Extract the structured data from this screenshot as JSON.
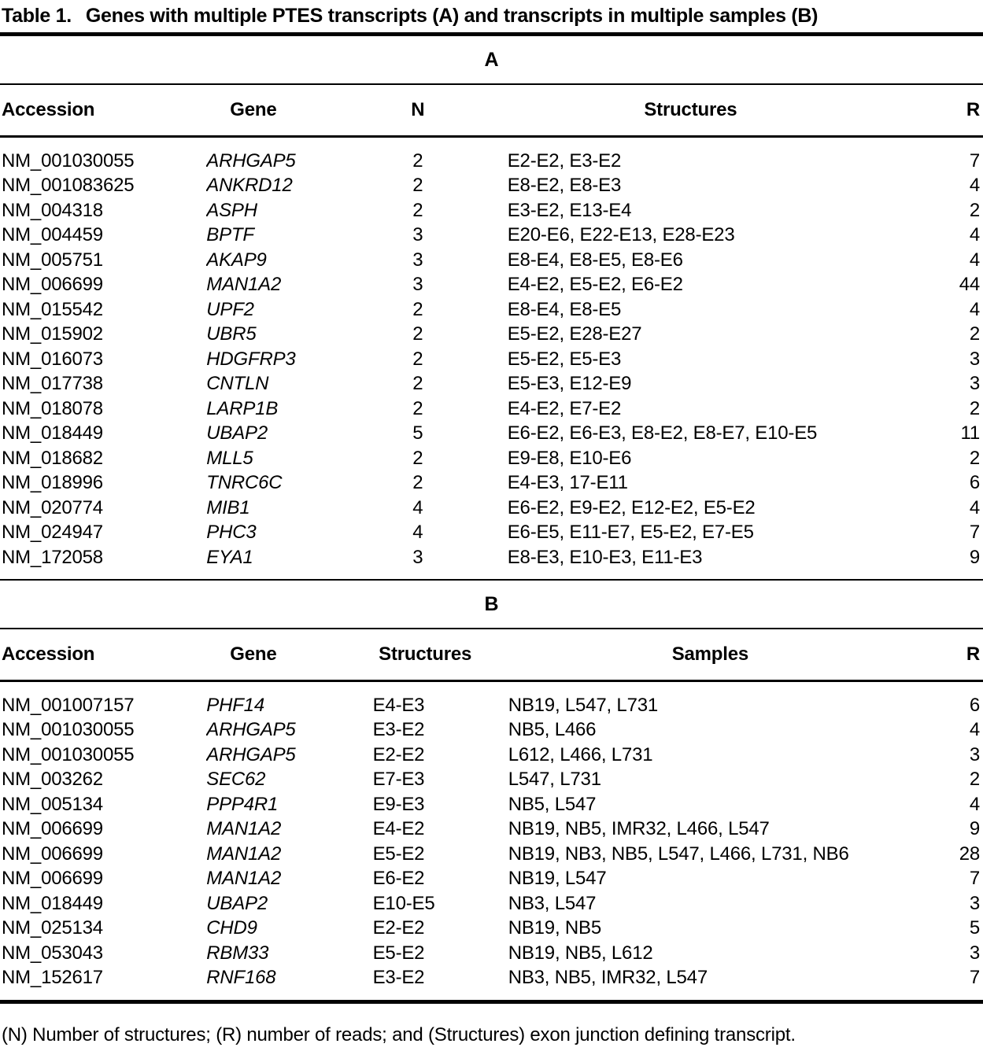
{
  "title": {
    "label": "Table 1.",
    "text": "Genes with multiple PTES transcripts (A) and transcripts in multiple samples (B)"
  },
  "section_a": {
    "heading": "A",
    "columns": {
      "accession": "Accession",
      "gene": "Gene",
      "n": "N",
      "structures": "Structures",
      "r": "R"
    },
    "rows": [
      {
        "accession": "NM_001030055",
        "gene": "ARHGAP5",
        "n": "2",
        "structures": "E2-E2, E3-E2",
        "r": "7"
      },
      {
        "accession": "NM_001083625",
        "gene": "ANKRD12",
        "n": "2",
        "structures": "E8-E2, E8-E3",
        "r": "4"
      },
      {
        "accession": "NM_004318",
        "gene": "ASPH",
        "n": "2",
        "structures": "E3-E2, E13-E4",
        "r": "2"
      },
      {
        "accession": "NM_004459",
        "gene": "BPTF",
        "n": "3",
        "structures": "E20-E6, E22-E13, E28-E23",
        "r": "4"
      },
      {
        "accession": "NM_005751",
        "gene": "AKAP9",
        "n": "3",
        "structures": "E8-E4, E8-E5, E8-E6",
        "r": "4"
      },
      {
        "accession": "NM_006699",
        "gene": "MAN1A2",
        "n": "3",
        "structures": "E4-E2, E5-E2, E6-E2",
        "r": "44"
      },
      {
        "accession": "NM_015542",
        "gene": "UPF2",
        "n": "2",
        "structures": "E8-E4, E8-E5",
        "r": "4"
      },
      {
        "accession": "NM_015902",
        "gene": "UBR5",
        "n": "2",
        "structures": "E5-E2, E28-E27",
        "r": "2"
      },
      {
        "accession": "NM_016073",
        "gene": "HDGFRP3",
        "n": "2",
        "structures": "E5-E2, E5-E3",
        "r": "3"
      },
      {
        "accession": "NM_017738",
        "gene": "CNTLN",
        "n": "2",
        "structures": "E5-E3, E12-E9",
        "r": "3"
      },
      {
        "accession": "NM_018078",
        "gene": "LARP1B",
        "n": "2",
        "structures": "E4-E2, E7-E2",
        "r": "2"
      },
      {
        "accession": "NM_018449",
        "gene": "UBAP2",
        "n": "5",
        "structures": "E6-E2, E6-E3, E8-E2, E8-E7, E10-E5",
        "r": "11"
      },
      {
        "accession": "NM_018682",
        "gene": "MLL5",
        "n": "2",
        "structures": "E9-E8, E10-E6",
        "r": "2"
      },
      {
        "accession": "NM_018996",
        "gene": "TNRC6C",
        "n": "2",
        "structures": "E4-E3, 17-E11",
        "r": "6"
      },
      {
        "accession": "NM_020774",
        "gene": "MIB1",
        "n": "4",
        "structures": "E6-E2, E9-E2, E12-E2, E5-E2",
        "r": "4"
      },
      {
        "accession": "NM_024947",
        "gene": "PHC3",
        "n": "4",
        "structures": "E6-E5, E11-E7, E5-E2, E7-E5",
        "r": "7"
      },
      {
        "accession": "NM_172058",
        "gene": "EYA1",
        "n": "3",
        "structures": "E8-E3, E10-E3, E11-E3",
        "r": "9"
      }
    ]
  },
  "section_b": {
    "heading": "B",
    "columns": {
      "accession": "Accession",
      "gene": "Gene",
      "structures": "Structures",
      "samples": "Samples",
      "r": "R"
    },
    "rows": [
      {
        "accession": "NM_001007157",
        "gene": "PHF14",
        "structures": "E4-E3",
        "samples": "NB19, L547, L731",
        "r": "6"
      },
      {
        "accession": "NM_001030055",
        "gene": "ARHGAP5",
        "structures": "E3-E2",
        "samples": "NB5, L466",
        "r": "4"
      },
      {
        "accession": "NM_001030055",
        "gene": "ARHGAP5",
        "structures": "E2-E2",
        "samples": "L612, L466, L731",
        "r": "3"
      },
      {
        "accession": "NM_003262",
        "gene": "SEC62",
        "structures": "E7-E3",
        "samples": "L547, L731",
        "r": "2"
      },
      {
        "accession": "NM_005134",
        "gene": "PPP4R1",
        "structures": "E9-E3",
        "samples": "NB5, L547",
        "r": "4"
      },
      {
        "accession": "NM_006699",
        "gene": "MAN1A2",
        "structures": "E4-E2",
        "samples": "NB19, NB5, IMR32, L466, L547",
        "r": "9"
      },
      {
        "accession": "NM_006699",
        "gene": "MAN1A2",
        "structures": "E5-E2",
        "samples": "NB19, NB3, NB5, L547, L466, L731, NB6",
        "r": "28"
      },
      {
        "accession": "NM_006699",
        "gene": "MAN1A2",
        "structures": "E6-E2",
        "samples": "NB19, L547",
        "r": "7"
      },
      {
        "accession": "NM_018449",
        "gene": "UBAP2",
        "structures": "E10-E5",
        "samples": "NB3, L547",
        "r": "3"
      },
      {
        "accession": "NM_025134",
        "gene": "CHD9",
        "structures": "E2-E2",
        "samples": "NB19, NB5",
        "r": "5"
      },
      {
        "accession": "NM_053043",
        "gene": "RBM33",
        "structures": "E5-E2",
        "samples": "NB19, NB5, L612",
        "r": "3"
      },
      {
        "accession": "NM_152617",
        "gene": "RNF168",
        "structures": "E3-E2",
        "samples": "NB3, NB5, IMR32, L547",
        "r": "7"
      }
    ]
  },
  "footnote": "(N) Number of structures; (R) number of reads; and (Structures) exon junction defining transcript.",
  "colors": {
    "text": "#000000",
    "background": "#ffffff",
    "rule": "#000000"
  }
}
